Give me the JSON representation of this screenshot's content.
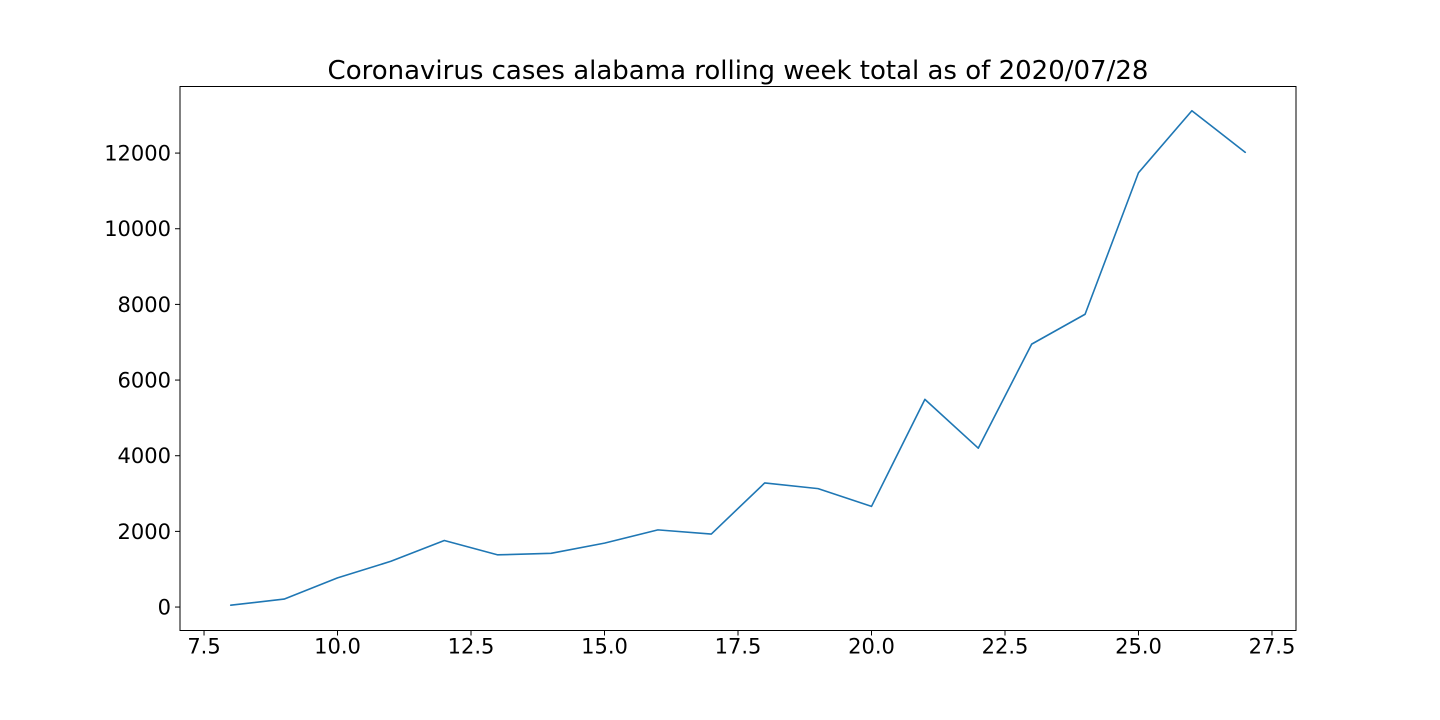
{
  "chart_data": {
    "type": "line",
    "title": "Coronavirus cases alabama rolling week total as of 2020/07/28",
    "xlabel": "",
    "ylabel": "",
    "xlim": [
      7.05,
      27.95
    ],
    "ylim": [
      -620,
      13760
    ],
    "x_ticks": [
      7.5,
      10.0,
      12.5,
      15.0,
      17.5,
      20.0,
      22.5,
      25.0,
      27.5
    ],
    "x_tick_labels": [
      "7.5",
      "10.0",
      "12.5",
      "15.0",
      "17.5",
      "20.0",
      "22.5",
      "25.0",
      "27.5"
    ],
    "y_ticks": [
      0,
      2000,
      4000,
      6000,
      8000,
      10000,
      12000
    ],
    "y_tick_labels": [
      "0",
      "2000",
      "4000",
      "6000",
      "8000",
      "10000",
      "12000"
    ],
    "grid": false,
    "series": [
      {
        "color": "#1f77b4",
        "x": [
          8,
          9,
          10,
          11,
          12,
          13,
          14,
          15,
          16,
          17,
          18,
          19,
          20,
          21,
          22,
          23,
          24,
          25,
          26,
          27
        ],
        "y": [
          50,
          210,
          770,
          1210,
          1760,
          1380,
          1420,
          1690,
          2040,
          1930,
          3280,
          3130,
          2660,
          5490,
          4200,
          6950,
          7740,
          11480,
          13120,
          12020
        ]
      }
    ]
  }
}
